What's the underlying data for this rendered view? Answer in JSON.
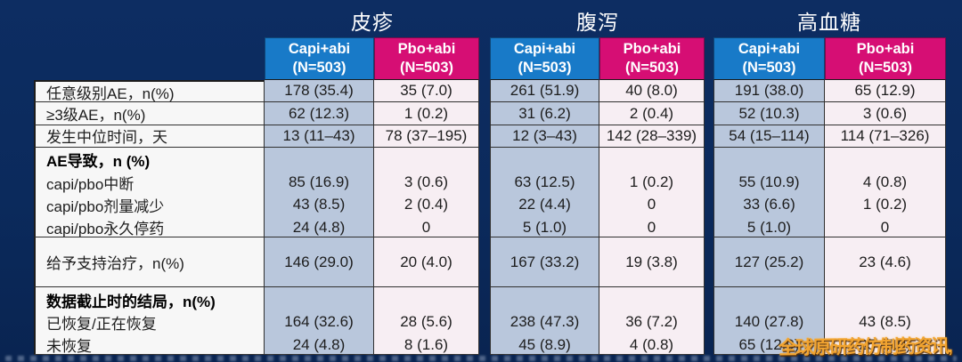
{
  "colors": {
    "background": "#0B2A5C",
    "capi_header": "#187AC8",
    "pbo_header": "#D60E74",
    "capi_cell": "#B9C7DC",
    "pbo_cell": "#F7EEF3",
    "label_cell": "#F7F7F7",
    "border": "#303030",
    "watermark": "#F2A430"
  },
  "table": {
    "groups": [
      {
        "title": "皮疹",
        "columns": [
          {
            "label": "Capi+abi",
            "n": "(N=503)",
            "color": "#187AC8"
          },
          {
            "label": "Pbo+abi",
            "n": "(N=503)",
            "color": "#D60E74"
          }
        ]
      },
      {
        "title": "腹泻",
        "columns": [
          {
            "label": "Capi+abi",
            "n": "(N=503)",
            "color": "#187AC8"
          },
          {
            "label": "Pbo+abi",
            "n": "(N=503)",
            "color": "#D60E74"
          }
        ]
      },
      {
        "title": "高血糖",
        "columns": [
          {
            "label": "Capi+abi",
            "n": "(N=503)",
            "color": "#187AC8"
          },
          {
            "label": "Pbo+abi",
            "n": "(N=503)",
            "color": "#D60E74"
          }
        ]
      }
    ],
    "rows": [
      {
        "kind": "single",
        "labels": [
          {
            "text": "任意级别AE，n(%)",
            "bold": false
          }
        ],
        "cells": [
          [
            "178 (35.4)"
          ],
          [
            "35 (7.0)"
          ],
          [
            "261 (51.9)"
          ],
          [
            "40 (8.0)"
          ],
          [
            "191 (38.0)"
          ],
          [
            "65 (12.9)"
          ]
        ]
      },
      {
        "kind": "single",
        "labels": [
          {
            "text": "≥3级AE，n(%)",
            "bold": false
          }
        ],
        "cells": [
          [
            "62 (12.3)"
          ],
          [
            "1 (0.2)"
          ],
          [
            "31 (6.2)"
          ],
          [
            "2 (0.4)"
          ],
          [
            "52 (10.3)"
          ],
          [
            "3 (0.6)"
          ]
        ]
      },
      {
        "kind": "single",
        "labels": [
          {
            "text": "发生中位时间，天",
            "bold": false
          }
        ],
        "cells": [
          [
            "13 (11–43)"
          ],
          [
            "78 (37–195)"
          ],
          [
            "12 (3–43)"
          ],
          [
            "142 (28–339)"
          ],
          [
            "54 (15–114)"
          ],
          [
            "114 (71–326)"
          ]
        ]
      },
      {
        "kind": "block",
        "labels": [
          {
            "text": "AE导致，n (%)",
            "bold": true
          },
          {
            "text": "capi/pbo中断",
            "bold": false
          },
          {
            "text": "capi/pbo剂量减少",
            "bold": false
          },
          {
            "text": "capi/pbo永久停药",
            "bold": false
          }
        ],
        "cells": [
          [
            "",
            "85 (16.9)",
            "43 (8.5)",
            "24 (4.8)"
          ],
          [
            "",
            "3 (0.6)",
            "2 (0.4)",
            "0"
          ],
          [
            "",
            "63 (12.5)",
            "22 (4.4)",
            "5 (1.0)"
          ],
          [
            "",
            "1 (0.2)",
            "0",
            "0"
          ],
          [
            "",
            "55 (10.9)",
            "33 (6.6)",
            "5 (1.0)"
          ],
          [
            "",
            "4 (0.8)",
            "1 (0.2)",
            "0"
          ]
        ]
      },
      {
        "kind": "tall",
        "labels": [
          {
            "text": "给予支持治疗，n(%)",
            "bold": false
          }
        ],
        "cells": [
          [
            "146 (29.0)"
          ],
          [
            "20 (4.0)"
          ],
          [
            "167 (33.2)"
          ],
          [
            "19 (3.8)"
          ],
          [
            "127 (25.2)"
          ],
          [
            "23 (4.6)"
          ]
        ]
      },
      {
        "kind": "block",
        "labels": [
          {
            "text": "数据截止时的结局，n(%)",
            "bold": true
          },
          {
            "text": "已恢复/正在恢复",
            "bold": false
          },
          {
            "text": "未恢复",
            "bold": false
          }
        ],
        "cells": [
          [
            "",
            "164 (32.6)",
            "24 (4.8)"
          ],
          [
            "",
            "28 (5.6)",
            "8 (1.6)"
          ],
          [
            "",
            "238 (47.3)",
            "45 (8.9)"
          ],
          [
            "",
            "36 (7.2)",
            "4 (0.8)"
          ],
          [
            "",
            "140 (27.8)",
            "65 (12.9)"
          ],
          [
            "",
            "43 (8.5)",
            "25 (5.0)"
          ]
        ]
      }
    ]
  },
  "watermark": {
    "text": "全球原研药仿制药资讯,"
  }
}
